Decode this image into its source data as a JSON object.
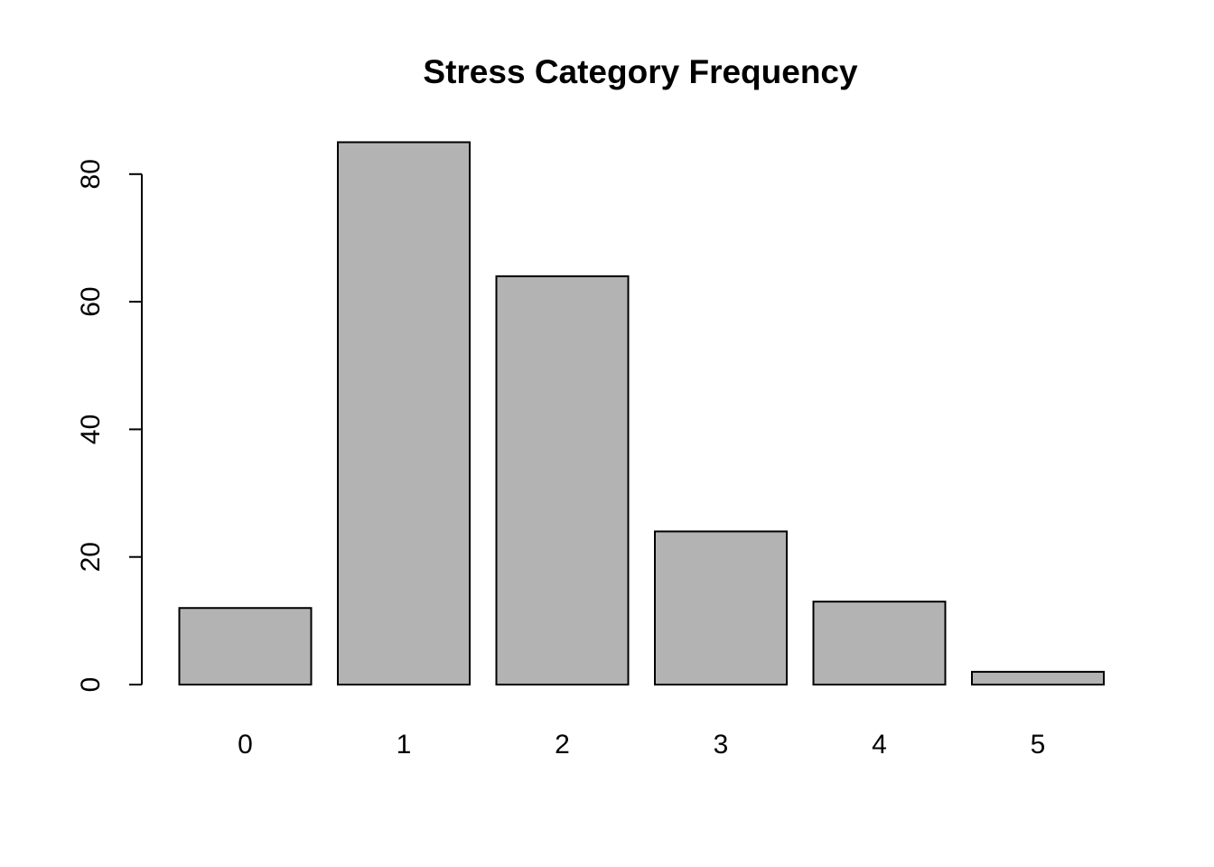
{
  "chart_data": {
    "type": "bar",
    "title": "Stress Category Frequency",
    "xlabel": "",
    "ylabel": "",
    "categories": [
      "0",
      "1",
      "2",
      "3",
      "4",
      "5"
    ],
    "values": [
      12,
      85,
      64,
      24,
      13,
      2
    ],
    "ylim": [
      0,
      85
    ],
    "yticks": [
      0,
      20,
      40,
      60,
      80
    ],
    "bar_color": "#b3b3b3",
    "bar_border_color": "#000000",
    "grid": false,
    "legend": "none"
  }
}
